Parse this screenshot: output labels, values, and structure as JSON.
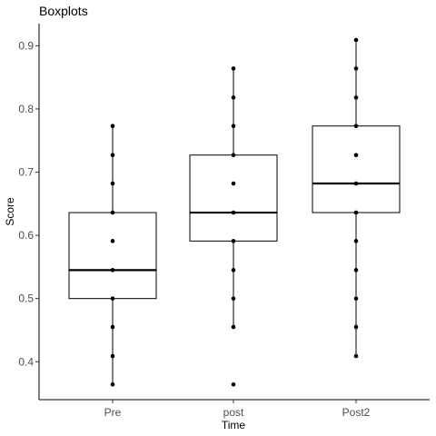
{
  "chart_data": {
    "type": "boxplot",
    "title": "Boxplots",
    "xlabel": "Time",
    "ylabel": "Score",
    "ylim": [
      0.34,
      0.935
    ],
    "yticks": [
      "0.4",
      "0.5",
      "0.6",
      "0.7",
      "0.8",
      "0.9"
    ],
    "grid": false,
    "categories": [
      "Pre",
      "post",
      "Post2"
    ],
    "boxes": [
      {
        "category": "Pre",
        "whisker_low": 0.364,
        "q1": 0.5,
        "median": 0.545,
        "q3": 0.636,
        "whisker_high": 0.773
      },
      {
        "category": "post",
        "whisker_low": 0.455,
        "q1": 0.591,
        "median": 0.636,
        "q3": 0.727,
        "whisker_high": 0.864
      },
      {
        "category": "Post2",
        "whisker_low": 0.409,
        "q1": 0.636,
        "median": 0.682,
        "q3": 0.773,
        "whisker_high": 0.909
      }
    ],
    "points": [
      [
        0.364,
        0.409,
        0.455,
        0.5,
        0.545,
        0.591,
        0.636,
        0.682,
        0.727,
        0.773
      ],
      [
        0.364,
        0.455,
        0.5,
        0.545,
        0.591,
        0.636,
        0.682,
        0.727,
        0.773,
        0.818,
        0.864
      ],
      [
        0.409,
        0.455,
        0.5,
        0.545,
        0.591,
        0.636,
        0.682,
        0.727,
        0.773,
        0.818,
        0.864,
        0.909
      ]
    ]
  }
}
